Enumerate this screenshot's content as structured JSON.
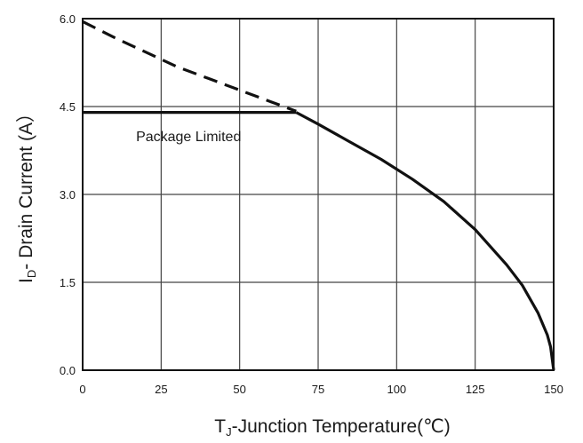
{
  "chart_data": {
    "type": "line",
    "title": "",
    "xlabel": {
      "main": "T",
      "sub": "J",
      "rest": "-Junction Temperature(℃)"
    },
    "ylabel": {
      "main": "I",
      "sub": "D",
      "rest": "- Drain Current (A）"
    },
    "xlim": [
      0,
      150
    ],
    "ylim": [
      0,
      6
    ],
    "xticks": [
      0,
      25,
      50,
      75,
      100,
      125,
      150
    ],
    "xtick_labels": [
      "0",
      "25",
      "50",
      "75",
      "100",
      "125",
      "150"
    ],
    "yticks": [
      0,
      1.5,
      3,
      4.5,
      6
    ],
    "ytick_labels": [
      "0.0",
      "1.5",
      "3.0",
      "4.5",
      "6.0"
    ],
    "grid": true,
    "series": [
      {
        "style": "dashed",
        "x": [
          0,
          10,
          20,
          30,
          40,
          50,
          60,
          68
        ],
        "y": [
          5.95,
          5.68,
          5.43,
          5.18,
          4.98,
          4.78,
          4.58,
          4.42
        ]
      },
      {
        "style": "solid",
        "x": [
          0,
          68
        ],
        "y": [
          4.4,
          4.4
        ]
      },
      {
        "style": "solid",
        "x": [
          68,
          75,
          85,
          95,
          105,
          115,
          125,
          135,
          140,
          145,
          148,
          149,
          150
        ],
        "y": [
          4.4,
          4.2,
          3.9,
          3.6,
          3.26,
          2.88,
          2.4,
          1.8,
          1.45,
          0.98,
          0.6,
          0.4,
          0.0
        ]
      }
    ],
    "annotations": [
      {
        "text": "Package Limited",
        "x": 17,
        "y": 4.0
      }
    ],
    "colors": {
      "line": "#111111",
      "grid": "#444444",
      "frame": "#111111"
    }
  }
}
